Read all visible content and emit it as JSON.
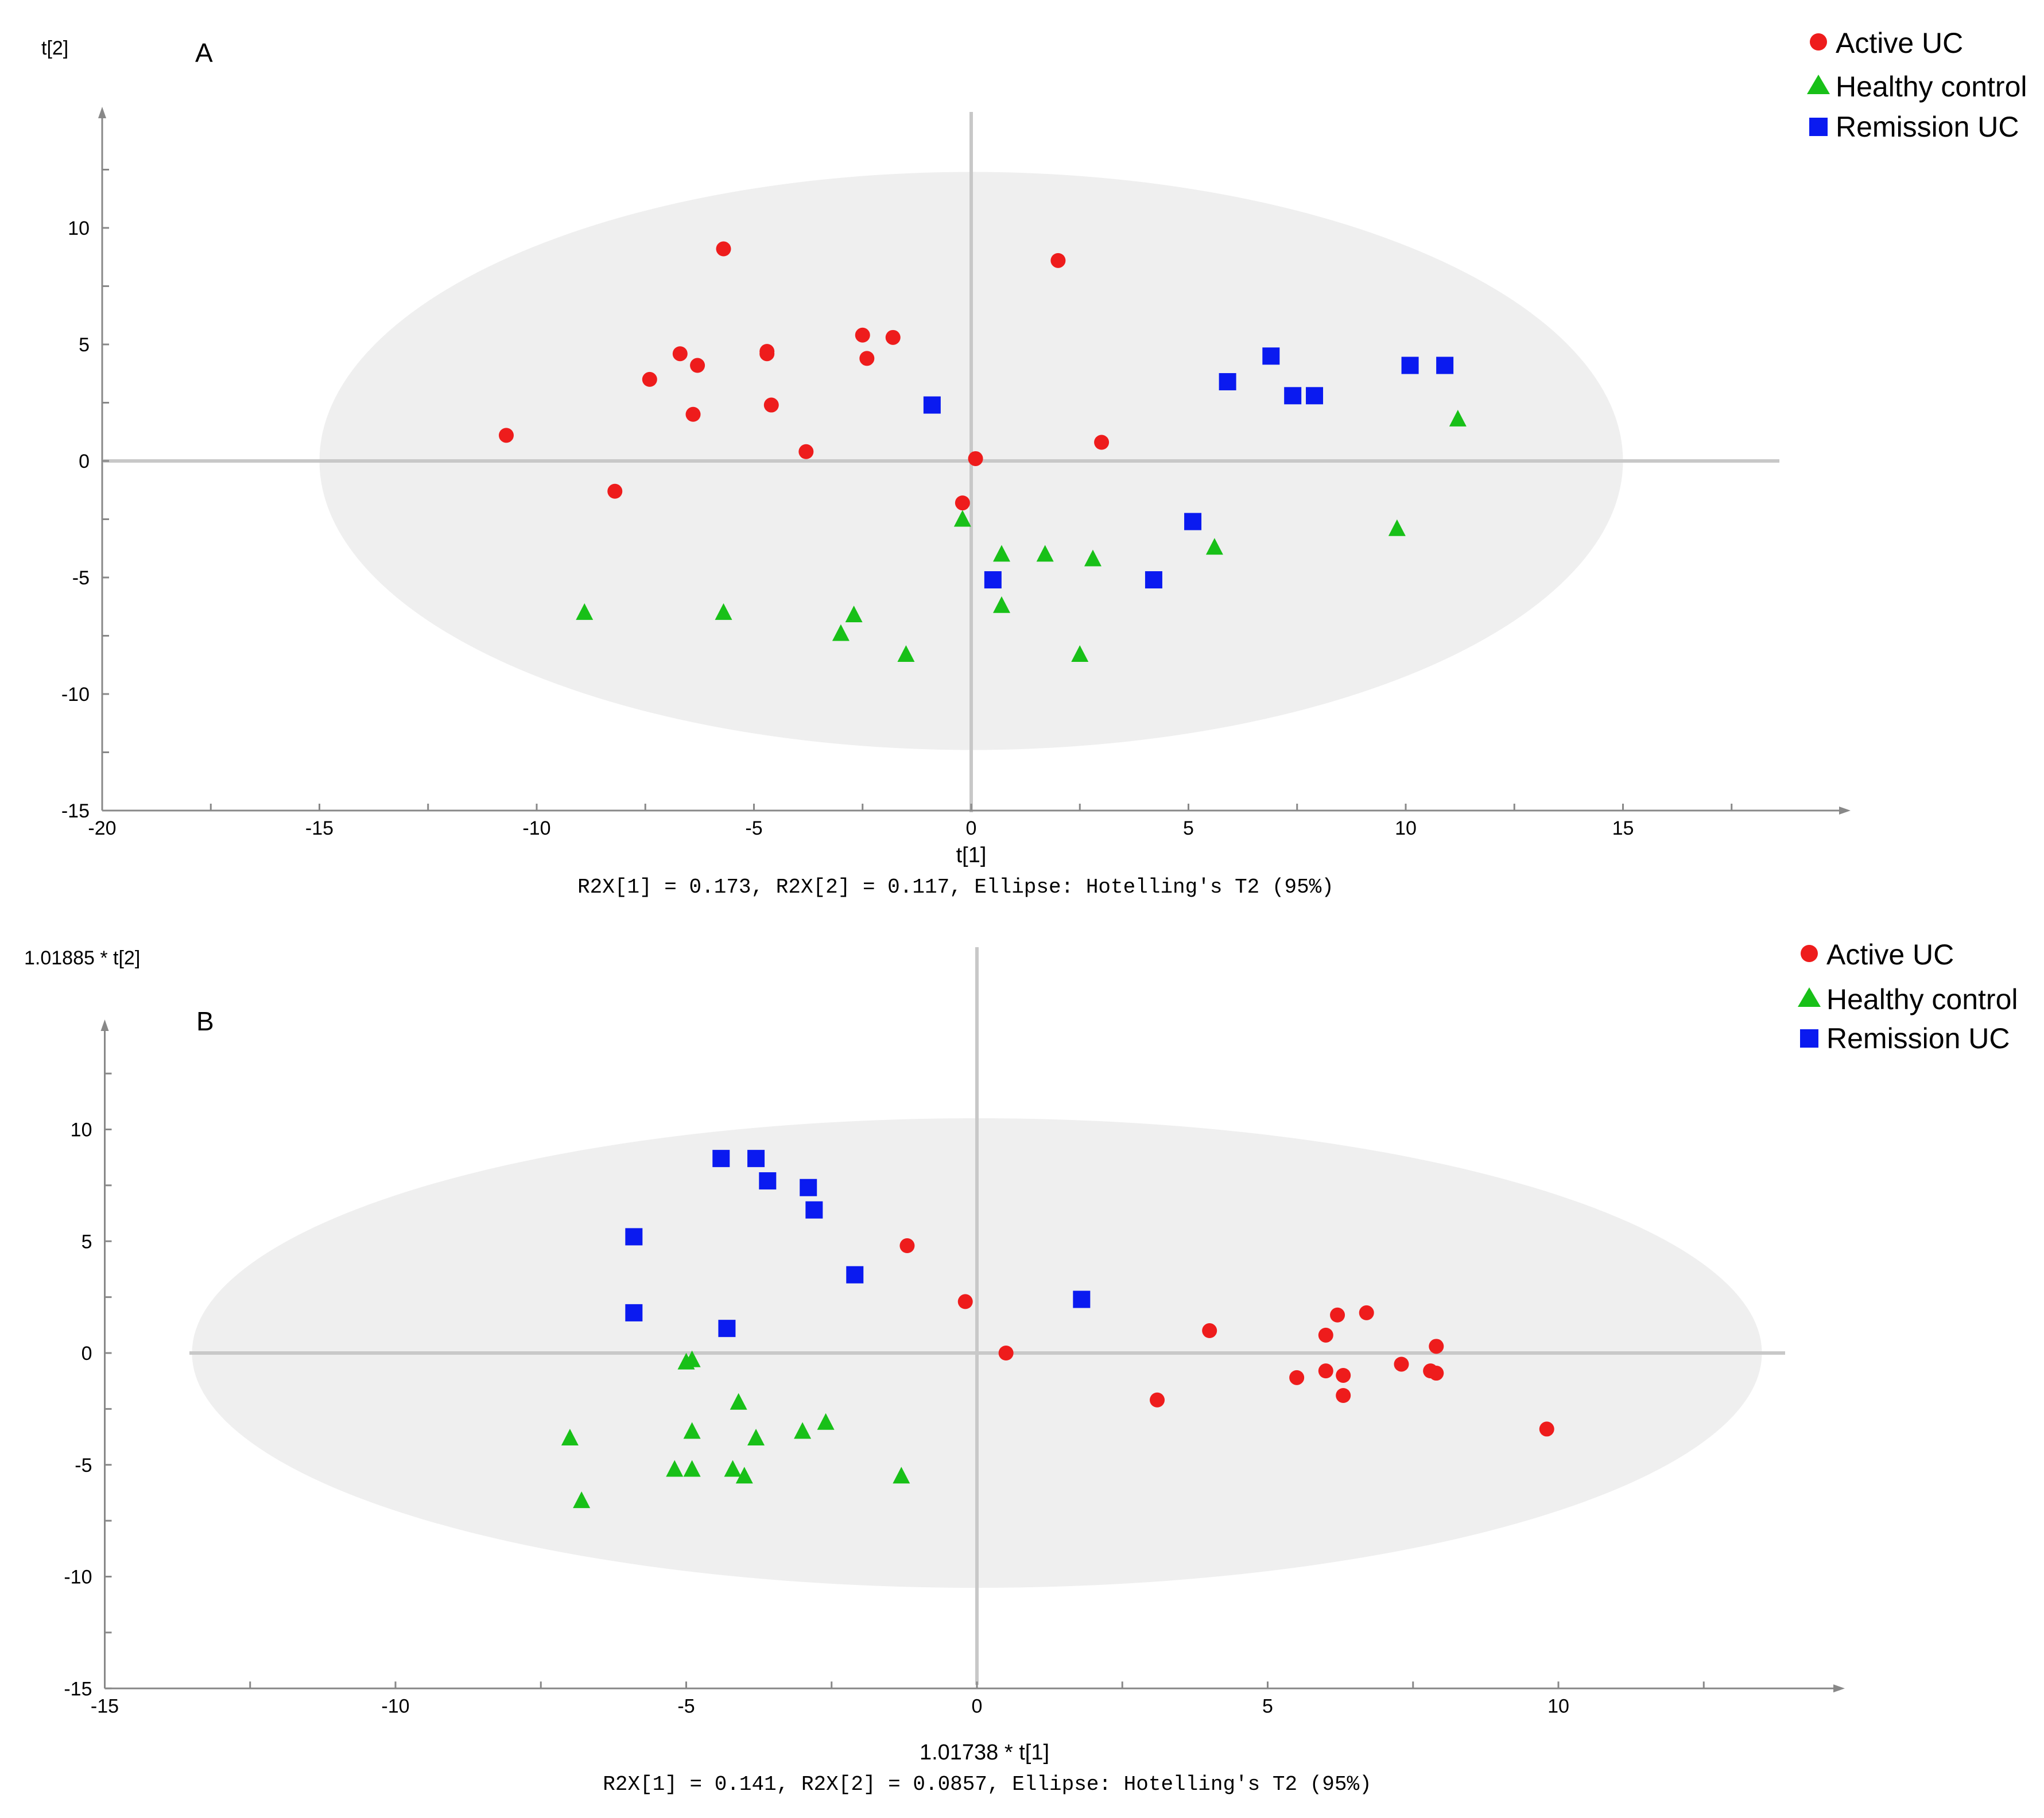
{
  "figure": {
    "colors": {
      "active": "#ee1c1c",
      "healthy": "#18c018",
      "remission": "#0a1af0",
      "ellipse": "#efefef",
      "axis": "#888888",
      "zero_line": "#c8c8c8"
    },
    "legend_placement": "top-right"
  },
  "chart_data": [
    {
      "type": "scatter",
      "panel_label": "A",
      "ylabel": "t[2]",
      "xlabel": "t[1]",
      "stats": "R2X[1] = 0.173, R2X[2] = 0.117, Ellipse: Hotelling's T2 (95%)",
      "xlim": [
        -20,
        20
      ],
      "ylim": [
        -15,
        15
      ],
      "xticks": [
        -20,
        -15,
        -10,
        -5,
        0,
        5,
        10,
        15
      ],
      "yticks": [
        -15,
        -10,
        -5,
        0,
        5,
        10
      ],
      "grid": false,
      "ellipse": {
        "cx": 0,
        "cy": 0,
        "rx": 15,
        "ry": 12.4
      },
      "legend": [
        "Active UC",
        "Healthy control",
        "Remission UC"
      ],
      "series": [
        {
          "name": "Active UC",
          "marker": "circle",
          "points": [
            [
              -10.7,
              1.1
            ],
            [
              -8.2,
              -1.3
            ],
            [
              -7.4,
              3.5
            ],
            [
              -6.7,
              4.6
            ],
            [
              -6.4,
              2.0
            ],
            [
              -6.3,
              4.1
            ],
            [
              -5.7,
              9.1
            ],
            [
              -4.7,
              4.6
            ],
            [
              -4.7,
              4.7
            ],
            [
              -4.6,
              2.4
            ],
            [
              -3.8,
              0.4
            ],
            [
              -2.5,
              5.4
            ],
            [
              -2.4,
              4.4
            ],
            [
              -1.8,
              5.3
            ],
            [
              -0.2,
              -1.8
            ],
            [
              0.1,
              0.1
            ],
            [
              2.0,
              8.6
            ],
            [
              3.0,
              0.8
            ]
          ]
        },
        {
          "name": "Healthy control",
          "marker": "triangle",
          "points": [
            [
              -8.9,
              -6.5
            ],
            [
              -5.7,
              -6.5
            ],
            [
              -3.0,
              -7.4
            ],
            [
              -2.7,
              -6.6
            ],
            [
              -1.5,
              -8.3
            ],
            [
              -0.2,
              -2.5
            ],
            [
              0.7,
              -4.0
            ],
            [
              0.7,
              -6.2
            ],
            [
              1.7,
              -4.0
            ],
            [
              2.5,
              -8.3
            ],
            [
              2.8,
              -4.2
            ],
            [
              5.6,
              -3.7
            ],
            [
              9.8,
              -2.9
            ],
            [
              11.2,
              1.8
            ]
          ]
        },
        {
          "name": "Remission UC",
          "marker": "square",
          "points": [
            [
              -0.9,
              2.4
            ],
            [
              0.5,
              -5.1
            ],
            [
              4.2,
              -5.1
            ],
            [
              5.1,
              -2.6
            ],
            [
              5.9,
              3.4
            ],
            [
              6.9,
              4.5
            ],
            [
              7.4,
              2.8
            ],
            [
              7.9,
              2.8
            ],
            [
              10.1,
              4.1
            ],
            [
              10.9,
              4.1
            ]
          ]
        }
      ]
    },
    {
      "type": "scatter",
      "panel_label": "B",
      "ylabel": "1.01885 * t[2]",
      "xlabel": "1.01738 * t[1]",
      "stats": "R2X[1] = 0.141, R2X[2] = 0.0857, Ellipse: Hotelling's T2 (95%)",
      "xlim": [
        -15,
        15
      ],
      "ylim": [
        -15,
        15
      ],
      "xticks": [
        -15,
        -10,
        -5,
        0,
        5,
        10
      ],
      "yticks": [
        -15,
        -10,
        -5,
        0,
        5,
        10
      ],
      "grid": false,
      "ellipse": {
        "cx": 0,
        "cy": 0,
        "rx": 13.5,
        "ry": 10.5
      },
      "legend": [
        "Active UC",
        "Healthy control",
        "Remission UC"
      ],
      "series": [
        {
          "name": "Active UC",
          "marker": "circle",
          "points": [
            [
              -1.2,
              4.8
            ],
            [
              -0.2,
              2.3
            ],
            [
              0.5,
              0.0
            ],
            [
              3.1,
              -2.1
            ],
            [
              4.0,
              1.0
            ],
            [
              5.5,
              -1.1
            ],
            [
              6.0,
              -0.8
            ],
            [
              6.0,
              0.8
            ],
            [
              6.2,
              1.7
            ],
            [
              6.3,
              -1.0
            ],
            [
              6.3,
              -1.9
            ],
            [
              6.7,
              1.8
            ],
            [
              7.3,
              -0.5
            ],
            [
              7.8,
              -0.8
            ],
            [
              7.9,
              -0.9
            ],
            [
              7.9,
              0.3
            ],
            [
              9.8,
              -3.4
            ]
          ]
        },
        {
          "name": "Healthy control",
          "marker": "triangle",
          "points": [
            [
              -7.0,
              -3.8
            ],
            [
              -6.8,
              -6.6
            ],
            [
              -5.2,
              -5.2
            ],
            [
              -5.0,
              -0.4
            ],
            [
              -4.9,
              -0.3
            ],
            [
              -4.9,
              -3.5
            ],
            [
              -4.9,
              -5.2
            ],
            [
              -4.2,
              -5.2
            ],
            [
              -4.1,
              -2.2
            ],
            [
              -4.0,
              -5.5
            ],
            [
              -3.8,
              -3.8
            ],
            [
              -3.0,
              -3.5
            ],
            [
              -2.6,
              -3.1
            ],
            [
              -1.3,
              -5.5
            ]
          ]
        },
        {
          "name": "Remission UC",
          "marker": "square",
          "points": [
            [
              -5.9,
              5.2
            ],
            [
              -5.9,
              1.8
            ],
            [
              -4.4,
              8.7
            ],
            [
              -4.3,
              1.1
            ],
            [
              -3.8,
              8.7
            ],
            [
              -3.6,
              7.7
            ],
            [
              -2.9,
              7.4
            ],
            [
              -2.8,
              6.4
            ],
            [
              -2.1,
              3.5
            ],
            [
              1.8,
              2.4
            ]
          ]
        }
      ]
    }
  ]
}
